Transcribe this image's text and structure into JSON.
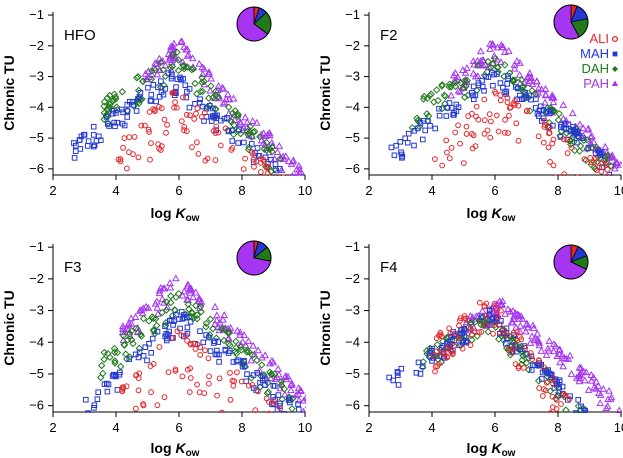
{
  "colors": {
    "ALI": "#e8262a",
    "MAH": "#2438d6",
    "DAH": "#1f7a1a",
    "PAH": "#a535f0"
  },
  "legend": [
    {
      "name": "ALI",
      "color": "#e8262a",
      "marker": "circle"
    },
    {
      "name": "MAH",
      "color": "#2438d6",
      "marker": "square"
    },
    {
      "name": "DAH",
      "color": "#1f7a1a",
      "marker": "diamond"
    },
    {
      "name": "PAH",
      "color": "#a535f0",
      "marker": "triangle"
    }
  ],
  "axis": {
    "xlabel_main": "log",
    "xlabel_italic": "K",
    "xlabel_sub": "ow",
    "ylabel": "Chronic TU"
  },
  "chart_data": [
    {
      "type": "scatter",
      "panel": "HFO",
      "title": "HFO",
      "xlim": [
        2,
        10
      ],
      "ylim": [
        -6.2,
        -0.9
      ],
      "xticks": [
        2,
        4,
        6,
        8,
        10
      ],
      "yticks": [
        -6,
        -5,
        -4,
        -3,
        -2,
        -1
      ],
      "xlabel": "log Kow",
      "ylabel": "Chronic TU",
      "grid": false,
      "pie": [
        {
          "name": "ALI",
          "value": 0.05
        },
        {
          "name": "MAH",
          "value": 0.08
        },
        {
          "name": "DAH",
          "value": 0.22
        },
        {
          "name": "PAH",
          "value": 0.65
        }
      ],
      "series": [
        {
          "name": "ALI",
          "marker": "circle",
          "xmin": 4.0,
          "xmax": 9.6,
          "peak_x": 5.9,
          "peak_y": -3.3,
          "left_slope": 1.0,
          "right_slope": 0.88,
          "spread": 1.6
        },
        {
          "name": "MAH",
          "marker": "square",
          "xmin": 2.6,
          "xmax": 9.2,
          "peak_x": 5.8,
          "peak_y": -2.8,
          "left_slope": 0.73,
          "right_slope": 0.93,
          "spread": 0.7
        },
        {
          "name": "DAH",
          "marker": "diamond",
          "xmin": 3.4,
          "xmax": 9.3,
          "peak_x": 5.9,
          "peak_y": -2.2,
          "left_slope": 0.7,
          "right_slope": 1.02,
          "spread": 0.9
        },
        {
          "name": "PAH",
          "marker": "triangle",
          "xmin": 4.9,
          "xmax": 9.9,
          "peak_x": 6.0,
          "peak_y": -1.8,
          "left_slope": 1.0,
          "right_slope": 1.08,
          "spread": 0.8
        }
      ]
    },
    {
      "type": "scatter",
      "panel": "F2",
      "title": "F2",
      "xlim": [
        2,
        10
      ],
      "ylim": [
        -6.2,
        -0.9
      ],
      "xticks": [
        2,
        4,
        6,
        8,
        10
      ],
      "yticks": [
        -6,
        -5,
        -4,
        -3,
        -2,
        -1
      ],
      "xlabel": "log Kow",
      "ylabel": "Chronic TU",
      "grid": false,
      "pie": [
        {
          "name": "ALI",
          "value": 0.06
        },
        {
          "name": "MAH",
          "value": 0.16
        },
        {
          "name": "DAH",
          "value": 0.2
        },
        {
          "name": "PAH",
          "value": 0.58
        }
      ],
      "series": [
        {
          "name": "ALI",
          "marker": "circle",
          "xmin": 4.0,
          "xmax": 10.0,
          "peak_x": 6.0,
          "peak_y": -3.4,
          "left_slope": 1.0,
          "right_slope": 0.7,
          "spread": 1.5
        },
        {
          "name": "MAH",
          "marker": "square",
          "xmin": 2.6,
          "xmax": 9.8,
          "peak_x": 6.0,
          "peak_y": -2.7,
          "left_slope": 0.78,
          "right_slope": 0.8,
          "spread": 0.6
        },
        {
          "name": "DAH",
          "marker": "diamond",
          "xmin": 3.3,
          "xmax": 9.7,
          "peak_x": 6.0,
          "peak_y": -2.3,
          "left_slope": 0.62,
          "right_slope": 0.92,
          "spread": 0.8
        },
        {
          "name": "PAH",
          "marker": "triangle",
          "xmin": 4.6,
          "xmax": 10.0,
          "peak_x": 6.0,
          "peak_y": -1.8,
          "left_slope": 0.9,
          "right_slope": 1.0,
          "spread": 0.7
        }
      ]
    },
    {
      "type": "scatter",
      "panel": "F3",
      "title": "F3",
      "xlim": [
        2,
        10
      ],
      "ylim": [
        -6.2,
        -0.9
      ],
      "xticks": [
        2,
        4,
        6,
        8,
        10
      ],
      "yticks": [
        -6,
        -5,
        -4,
        -3,
        -2,
        -1
      ],
      "xlabel": "log Kow",
      "ylabel": "Chronic TU",
      "grid": false,
      "pie": [
        {
          "name": "ALI",
          "value": 0.04
        },
        {
          "name": "MAH",
          "value": 0.1
        },
        {
          "name": "DAH",
          "value": 0.14
        },
        {
          "name": "PAH",
          "value": 0.72
        }
      ],
      "series": [
        {
          "name": "ALI",
          "marker": "circle",
          "xmin": 4.1,
          "xmax": 10.1,
          "peak_x": 6.0,
          "peak_y": -3.6,
          "left_slope": 1.0,
          "right_slope": 0.75,
          "spread": 1.8
        },
        {
          "name": "MAH",
          "marker": "square",
          "xmin": 3.0,
          "xmax": 10.0,
          "peak_x": 6.0,
          "peak_y": -3.0,
          "left_slope": 0.95,
          "right_slope": 0.78,
          "spread": 0.7
        },
        {
          "name": "DAH",
          "marker": "diamond",
          "xmin": 3.5,
          "xmax": 9.8,
          "peak_x": 6.0,
          "peak_y": -2.3,
          "left_slope": 0.88,
          "right_slope": 0.9,
          "spread": 0.8
        },
        {
          "name": "PAH",
          "marker": "triangle",
          "xmin": 4.2,
          "xmax": 10.2,
          "peak_x": 6.0,
          "peak_y": -1.8,
          "left_slope": 0.95,
          "right_slope": 0.95,
          "spread": 0.7
        }
      ]
    },
    {
      "type": "scatter",
      "panel": "F4",
      "title": "F4",
      "xlim": [
        2,
        10
      ],
      "ylim": [
        -6.2,
        -0.9
      ],
      "xticks": [
        2,
        4,
        6,
        8,
        10
      ],
      "yticks": [
        -6,
        -5,
        -4,
        -3,
        -2,
        -1
      ],
      "xlabel": "log Kow",
      "ylabel": "Chronic TU",
      "grid": false,
      "pie": [
        {
          "name": "ALI",
          "value": 0.07
        },
        {
          "name": "MAH",
          "value": 0.12
        },
        {
          "name": "DAH",
          "value": 0.13
        },
        {
          "name": "PAH",
          "value": 0.68
        }
      ],
      "series": [
        {
          "name": "ALI",
          "marker": "circle",
          "xmin": 4.0,
          "xmax": 8.4,
          "peak_x": 5.8,
          "peak_y": -2.5,
          "left_slope": 0.8,
          "right_slope": 1.3,
          "spread": 1.2
        },
        {
          "name": "MAH",
          "marker": "square",
          "xmin": 2.6,
          "xmax": 9.0,
          "peak_x": 5.8,
          "peak_y": -3.0,
          "left_slope": 0.65,
          "right_slope": 1.0,
          "spread": 0.6
        },
        {
          "name": "DAH",
          "marker": "diamond",
          "xmin": 3.7,
          "xmax": 9.0,
          "peak_x": 5.8,
          "peak_y": -3.1,
          "left_slope": 0.6,
          "right_slope": 1.0,
          "spread": 0.6
        },
        {
          "name": "PAH",
          "marker": "triangle",
          "xmin": 5.0,
          "xmax": 10.0,
          "peak_x": 6.3,
          "peak_y": -2.7,
          "left_slope": 0.5,
          "right_slope": 0.85,
          "spread": 0.6
        }
      ]
    }
  ]
}
